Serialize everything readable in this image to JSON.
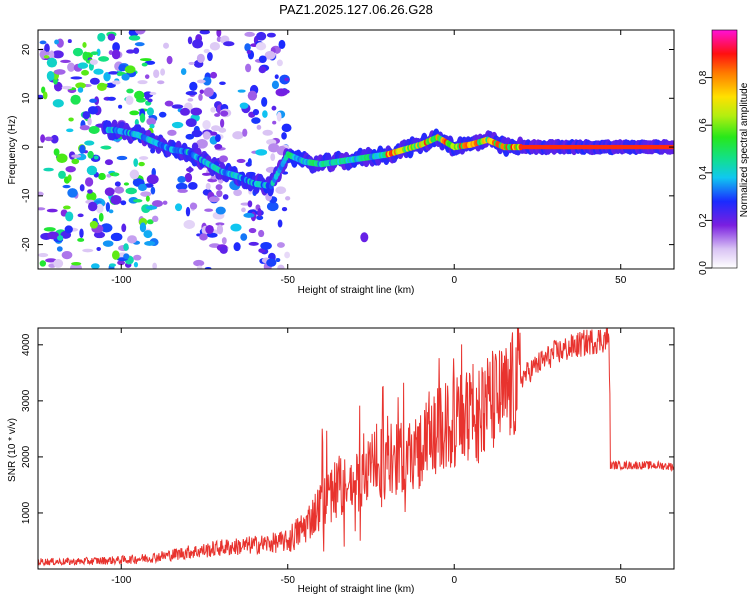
{
  "title": "PAZ1.2025.127.06.26.G28",
  "chart_data": [
    {
      "type": "heatmap",
      "xlabel": "Height of straight line (km)",
      "ylabel": "Frequency (Hz)",
      "xlim": [
        -125,
        66
      ],
      "ylim": [
        -25,
        24
      ],
      "x_ticks": [
        -100,
        -50,
        0,
        50
      ],
      "y_ticks": [
        -20,
        -10,
        0,
        10,
        20
      ],
      "ridge": {
        "x": [
          -102,
          -95,
          -90,
          -85,
          -80,
          -75,
          -70,
          -65,
          -60,
          -55,
          -50,
          -45,
          -40,
          -35,
          -30,
          -25,
          -20,
          -15,
          -10,
          -5,
          0,
          5,
          10,
          15,
          20,
          30,
          40,
          50,
          66
        ],
        "y": [
          3.5,
          2.5,
          1,
          -0.5,
          -1,
          -3,
          -5,
          -6,
          -7.5,
          -8,
          -1.5,
          -3,
          -3.5,
          -3,
          -2.5,
          -2,
          -1.5,
          -0.5,
          0.5,
          2,
          0,
          0.5,
          1.5,
          0,
          0,
          0,
          0,
          0,
          0
        ]
      },
      "colorbar": {
        "label": "Normalized spectral amplitude",
        "ticks": [
          "0.0",
          "0.2",
          "0.4",
          "0.6",
          "0.8"
        ],
        "min": 0,
        "max": 1
      }
    },
    {
      "type": "line",
      "xlabel": "Height of straight line (km)",
      "ylabel": "SNR (10 * v/v)",
      "xlim": [
        -125,
        66
      ],
      "ylim": [
        0,
        4300
      ],
      "x_ticks": [
        -100,
        -50,
        0,
        50
      ],
      "y_ticks": [
        1000,
        2000,
        3000,
        4000
      ],
      "line_color": "#e8332e",
      "series": [
        {
          "x": [
            -125,
            -120,
            -115,
            -110,
            -105,
            -100,
            -95,
            -90,
            -85,
            -80,
            -75,
            -70,
            -65,
            -60,
            -55,
            -50,
            -45,
            -40,
            -35,
            -30,
            -25,
            -20,
            -15,
            -10,
            -5,
            0,
            5,
            10,
            15,
            20,
            25,
            30,
            35,
            40,
            45,
            46.5,
            47,
            50,
            55,
            60,
            66
          ],
          "y": [
            130,
            130,
            130,
            140,
            150,
            160,
            180,
            210,
            250,
            300,
            330,
            380,
            400,
            430,
            460,
            500,
            750,
            1150,
            1450,
            1500,
            1800,
            1900,
            2000,
            2150,
            2450,
            2600,
            2750,
            2950,
            3050,
            3400,
            3650,
            3850,
            3950,
            4050,
            4100,
            4100,
            1850,
            1850,
            1850,
            1850,
            1830
          ]
        }
      ]
    }
  ]
}
